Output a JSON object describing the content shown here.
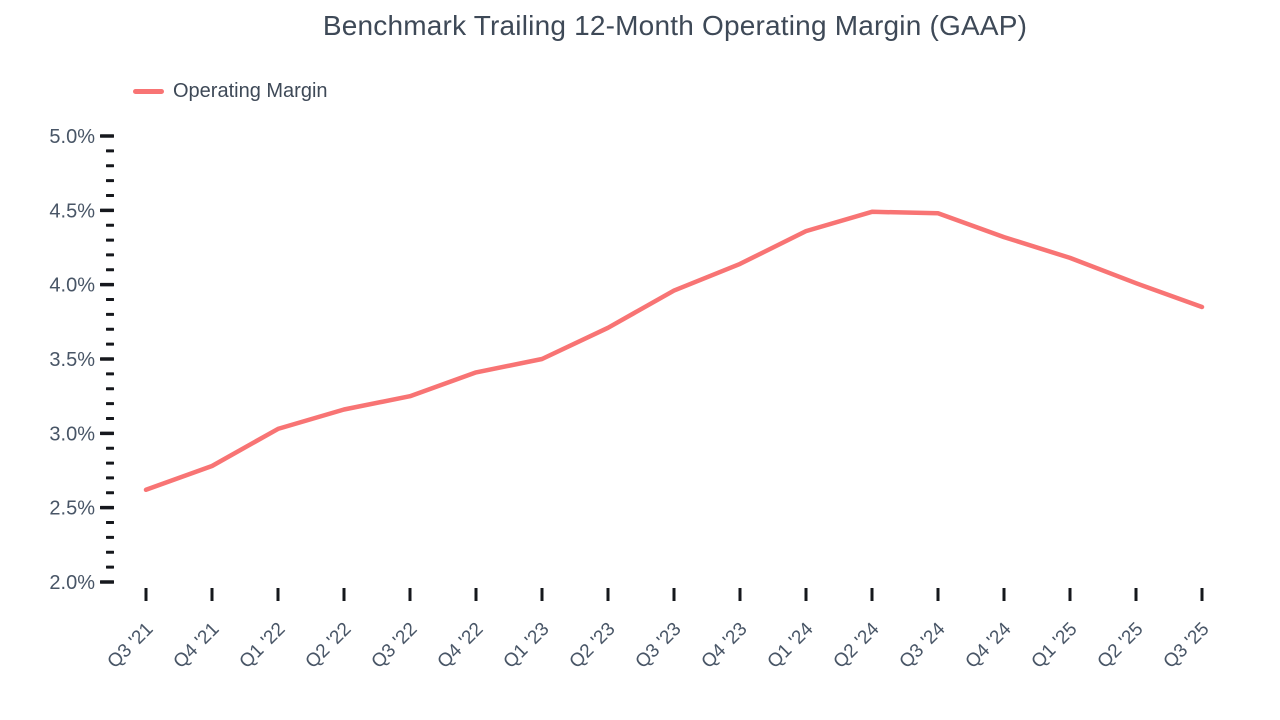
{
  "chart_data": {
    "type": "line",
    "title": "Benchmark Trailing 12-Month Operating Margin (GAAP)",
    "legend_position": "top-left",
    "grid": false,
    "unit": "%",
    "categories": [
      "Q3 '21",
      "Q4 '21",
      "Q1 '22",
      "Q2 '22",
      "Q3 '22",
      "Q4 '22",
      "Q1 '23",
      "Q2 '23",
      "Q3 '23",
      "Q4 '23",
      "Q1 '24",
      "Q2 '24",
      "Q3 '24",
      "Q4 '24",
      "Q1 '25",
      "Q2 '25",
      "Q3 '25"
    ],
    "series": [
      {
        "name": "Operating Margin",
        "color": "#F87474",
        "values": [
          2.62,
          2.78,
          3.03,
          3.16,
          3.25,
          3.41,
          3.5,
          3.71,
          3.96,
          4.14,
          4.36,
          4.49,
          4.48,
          4.32,
          4.18,
          4.01,
          3.85
        ]
      }
    ],
    "y_axis": {
      "min": 2.0,
      "max": 5.0,
      "major_step": 0.5,
      "minor_step": 0.1,
      "tick_labels": [
        "5.0%",
        "4.5%",
        "4.0%",
        "3.5%",
        "3.0%",
        "2.5%",
        "2.0%"
      ]
    },
    "x_axis": {
      "label_rotation": -45
    }
  },
  "colors": {
    "title": "#3E4957",
    "axis_label": "#485566",
    "tick": "#16181D",
    "line": "#F87474",
    "background": "#FFFFFF"
  }
}
